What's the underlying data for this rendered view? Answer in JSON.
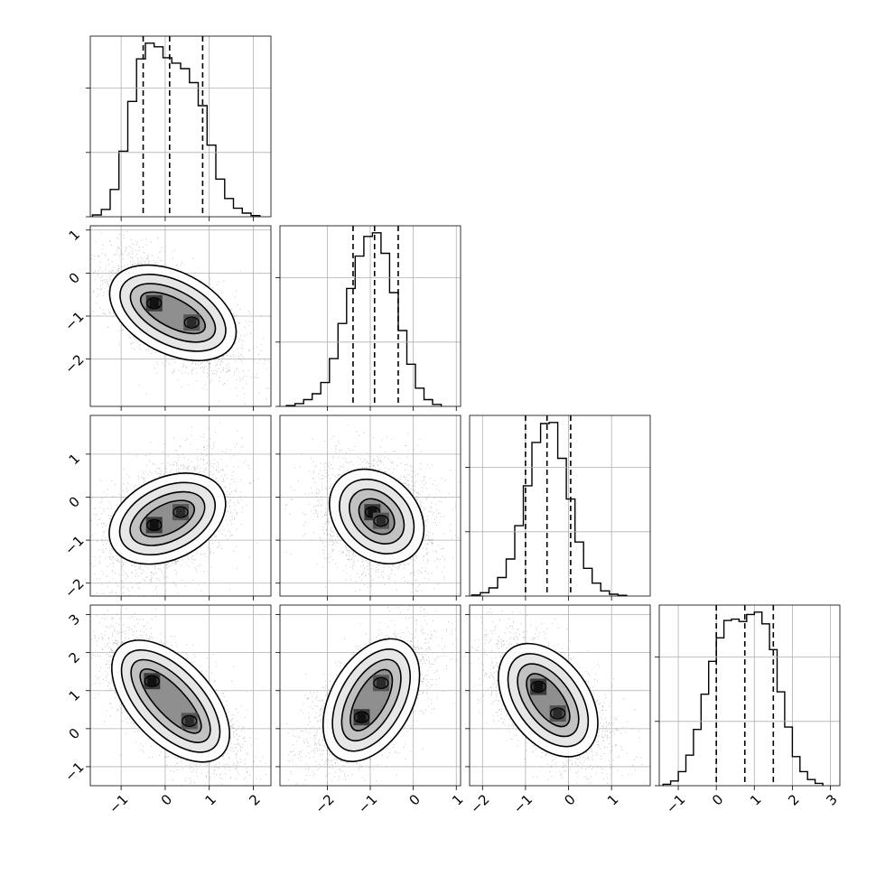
{
  "chart_data": {
    "type": "corner",
    "params": 4,
    "grid": true,
    "scatter_color": "#7f7f7f",
    "contour_color": "#000000",
    "histograms": [
      {
        "param": 0,
        "type": "step-histogram",
        "range": [
          -1.7,
          2.4
        ],
        "bins": [
          -1.55,
          -1.35,
          -1.15,
          -0.95,
          -0.75,
          -0.55,
          -0.35,
          -0.15,
          0.05,
          0.25,
          0.45,
          0.65,
          0.85,
          1.05,
          1.25,
          1.45,
          1.65,
          1.85,
          2.05
        ],
        "counts": [
          0.3,
          1.2,
          4.5,
          10.8,
          19.0,
          26.0,
          28.6,
          28.0,
          26.2,
          25.3,
          24.4,
          22.1,
          18.3,
          11.8,
          6.2,
          3.0,
          1.4,
          0.6,
          0.2
        ],
        "quantiles": [
          -0.5,
          0.1,
          0.85
        ]
      },
      {
        "param": 1,
        "type": "step-histogram",
        "range": [
          -3.1,
          1.1
        ],
        "bins": [
          -2.85,
          -2.65,
          -2.45,
          -2.25,
          -2.05,
          -1.85,
          -1.65,
          -1.45,
          -1.25,
          -1.05,
          -0.85,
          -0.65,
          -0.45,
          -0.25,
          -0.05,
          0.15,
          0.35,
          0.55
        ],
        "counts": [
          0.3,
          1.0,
          2.4,
          4.5,
          8.5,
          17.0,
          29.5,
          42.0,
          53.5,
          60.5,
          61.8,
          54.5,
          40.5,
          27.0,
          15.0,
          6.5,
          2.4,
          0.7
        ],
        "quantiles": [
          -1.4,
          -0.9,
          -0.35
        ]
      },
      {
        "param": 2,
        "type": "step-histogram",
        "range": [
          -2.3,
          1.9
        ],
        "bins": [
          -2.15,
          -1.95,
          -1.75,
          -1.55,
          -1.35,
          -1.15,
          -0.95,
          -0.75,
          -0.55,
          -0.35,
          -0.15,
          0.05,
          0.25,
          0.45,
          0.65,
          0.85,
          1.05,
          1.25
        ],
        "counts": [
          0.3,
          0.9,
          2.2,
          5.0,
          10.0,
          19.0,
          29.8,
          41.5,
          46.6,
          46.9,
          37.2,
          26.2,
          14.6,
          7.5,
          3.5,
          1.4,
          0.5,
          0.2
        ],
        "quantiles": [
          -1.0,
          -0.5,
          0.05
        ]
      },
      {
        "param": 3,
        "type": "step-histogram",
        "range": [
          -1.5,
          3.25
        ],
        "bins": [
          -1.3,
          -1.1,
          -0.9,
          -0.7,
          -0.5,
          -0.3,
          -0.1,
          0.1,
          0.3,
          0.5,
          0.7,
          0.9,
          1.1,
          1.3,
          1.5,
          1.7,
          1.9,
          2.1,
          2.3,
          2.5,
          2.7
        ],
        "counts": [
          0.3,
          1.0,
          3.0,
          6.5,
          12.0,
          19.5,
          26.5,
          31.5,
          35.2,
          35.5,
          35.0,
          36.5,
          37.0,
          34.5,
          29.0,
          20.0,
          12.5,
          6.2,
          3.0,
          1.3,
          0.5
        ],
        "quantiles": [
          0.0,
          0.75,
          1.5
        ]
      }
    ],
    "axis_ranges": [
      [
        -1.7,
        2.4
      ],
      [
        -3.1,
        1.1
      ],
      [
        -2.3,
        1.9
      ],
      [
        -1.5,
        3.25
      ]
    ],
    "x_tick_labels": [
      [
        "−1",
        "0",
        "1",
        "2"
      ],
      [
        "−2",
        "−1",
        "0",
        "1"
      ],
      [
        "−2",
        "−1",
        "0",
        "1"
      ],
      [
        "−1",
        "0",
        "1",
        "2",
        "3"
      ]
    ],
    "x_ticks": [
      [
        -1,
        0,
        1,
        2
      ],
      [
        -2,
        -1,
        0,
        1
      ],
      [
        -2,
        -1,
        0,
        1
      ],
      [
        -1,
        0,
        1,
        2,
        3
      ]
    ],
    "y_tick_labels": [
      null,
      [
        "1",
        "0",
        "−1",
        "−2"
      ],
      [
        "1",
        "0",
        "−1",
        "−2"
      ],
      [
        "3",
        "2",
        "1",
        "0",
        "−1"
      ]
    ],
    "y_ticks": [
      null,
      [
        1,
        0,
        -1,
        -2
      ],
      [
        1,
        0,
        -1,
        -2
      ],
      [
        3,
        2,
        1,
        0,
        -1
      ]
    ],
    "pairs": [
      {
        "x_param": 0,
        "y_param": 1,
        "correlation": -0.6,
        "modes": [
          {
            "x": -0.25,
            "y": -0.7
          },
          {
            "x": 0.6,
            "y": -1.15
          }
        ]
      },
      {
        "x_param": 0,
        "y_param": 2,
        "correlation": 0.35,
        "modes": [
          {
            "x": -0.25,
            "y": -0.65
          },
          {
            "x": 0.35,
            "y": -0.35
          }
        ]
      },
      {
        "x_param": 1,
        "y_param": 2,
        "correlation": -0.15,
        "modes": [
          {
            "x": -0.95,
            "y": -0.35
          },
          {
            "x": -0.75,
            "y": -0.55
          }
        ]
      },
      {
        "x_param": 0,
        "y_param": 3,
        "correlation": -0.55,
        "modes": [
          {
            "x": -0.3,
            "y": 1.25
          },
          {
            "x": 0.55,
            "y": 0.2
          }
        ]
      },
      {
        "x_param": 1,
        "y_param": 3,
        "correlation": 0.55,
        "modes": [
          {
            "x": -1.2,
            "y": 0.3
          },
          {
            "x": -0.75,
            "y": 1.2
          }
        ]
      },
      {
        "x_param": 2,
        "y_param": 3,
        "correlation": -0.5,
        "modes": [
          {
            "x": -0.7,
            "y": 1.1
          },
          {
            "x": -0.25,
            "y": 0.4
          }
        ]
      }
    ]
  }
}
